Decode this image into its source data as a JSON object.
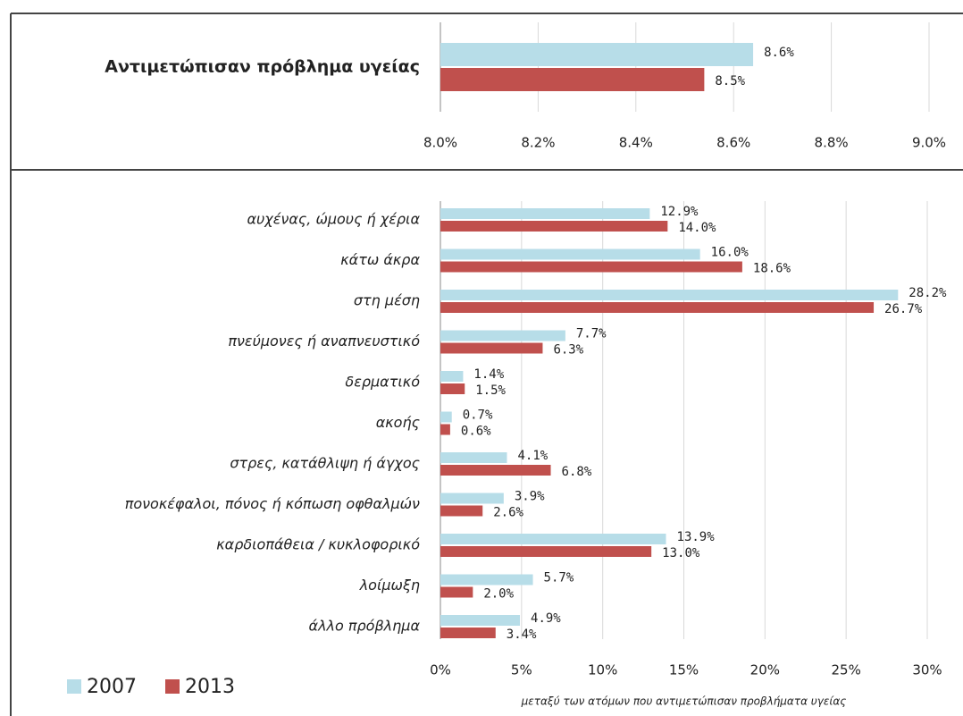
{
  "chart_data": [
    {
      "type": "hbar",
      "categories": [
        "Αντιμετώπισαν πρόβλημα υγείας"
      ],
      "series": [
        {
          "color": "#b7dde8",
          "values": [
            8.64
          ],
          "value_labels": [
            "8.6%"
          ]
        },
        {
          "color": "#c0504d",
          "values": [
            8.54
          ],
          "value_labels": [
            "8.5%"
          ]
        }
      ],
      "xlim": [
        8.0,
        9.0
      ],
      "xticks": [
        {
          "value": 8.0,
          "label": "8.0%"
        },
        {
          "value": 8.2,
          "label": "8.2%"
        },
        {
          "value": 8.4,
          "label": "8.4%"
        },
        {
          "value": 8.6,
          "label": "8.6%"
        },
        {
          "value": 8.8,
          "label": "8.8%"
        },
        {
          "value": 9.0,
          "label": "9.0%"
        }
      ],
      "grid": true
    },
    {
      "type": "hbar",
      "x_label": "μεταξύ των ατόμων που αντιμετώπισαν προβλήματα υγείας",
      "categories": [
        "αυχένας, ώμους ή χέρια",
        "κάτω άκρα",
        "στη μέση",
        "πνεύμονες ή αναπνευστικό",
        "δερματικό",
        "ακοής",
        "στρες, κατάθλιψη ή άγχος",
        "πονοκέφαλοι, πόνος ή κόπωση οφθαλμών",
        "καρδιοπάθεια / κυκλοφορικό",
        "λοίμωξη",
        "άλλο πρόβλημα"
      ],
      "series": [
        {
          "name": "2007",
          "color": "#b7dde8",
          "values": [
            12.9,
            16.0,
            28.2,
            7.7,
            1.4,
            0.7,
            4.1,
            3.9,
            13.9,
            5.7,
            4.9
          ],
          "value_labels": [
            "12.9%",
            "16.0%",
            "28.2%",
            "7.7%",
            "1.4%",
            "0.7%",
            "4.1%",
            "3.9%",
            "13.9%",
            "5.7%",
            "4.9%"
          ]
        },
        {
          "name": "2013",
          "color": "#c0504d",
          "values": [
            14.0,
            18.6,
            26.7,
            6.3,
            1.5,
            0.6,
            6.8,
            2.6,
            13.0,
            2.0,
            3.4
          ],
          "value_labels": [
            "14.0%",
            "18.6%",
            "26.7%",
            "6.3%",
            "1.5%",
            "0.6%",
            "6.8%",
            "2.6%",
            "13.0%",
            "2.0%",
            "3.4%"
          ]
        }
      ],
      "xlim": [
        0,
        30
      ],
      "xticks": [
        {
          "value": 0,
          "label": "0%"
        },
        {
          "value": 5,
          "label": "5%"
        },
        {
          "value": 10,
          "label": "10%"
        },
        {
          "value": 15,
          "label": "15%"
        },
        {
          "value": 20,
          "label": "20%"
        },
        {
          "value": 25,
          "label": "25%"
        },
        {
          "value": 30,
          "label": "30%"
        }
      ],
      "grid": true
    }
  ]
}
